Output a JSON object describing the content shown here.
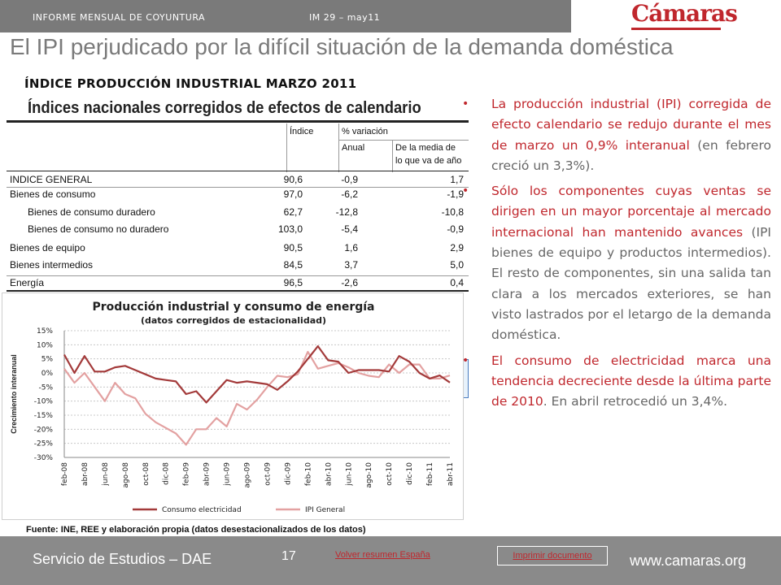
{
  "header": {
    "report": "INFORME MENSUAL DE COYUNTURA",
    "issue": "IM 29 – may11",
    "logo": "Cámaras",
    "title": "El IPI perjudicado por la difícil situación de la demanda doméstica"
  },
  "section_title": "ÍNDICE PRODUCCIÓN INDUSTRIAL MARZO 2011",
  "table": {
    "title": "Índices nacionales corregidos de efectos de calendario",
    "col_index": "Índice",
    "col_variation": "% variación",
    "col_annual": "Anual",
    "col_avg_line1": "De la media de",
    "col_avg_line2": "lo que va de año",
    "rows": [
      {
        "label": "INDICE GENERAL",
        "index": "90,6",
        "annual": "-0,9",
        "avg": "1,7"
      },
      {
        "label": "Bienes de consumo",
        "index": "97,0",
        "annual": "-6,2",
        "avg": "-1,9"
      },
      {
        "label": "Bienes de consumo duradero",
        "index": "62,7",
        "annual": "-12,8",
        "avg": "-10,8"
      },
      {
        "label": "Bienes de consumo no duradero",
        "index": "103,0",
        "annual": "-5,4",
        "avg": "-0,9"
      },
      {
        "label": "Bienes de equipo",
        "index": "90,5",
        "annual": "1,6",
        "avg": "2,9"
      },
      {
        "label": "Bienes intermedios",
        "index": "84,5",
        "annual": "3,7",
        "avg": "5,0"
      },
      {
        "label": "Energía",
        "index": "96,5",
        "annual": "-2,6",
        "avg": "0,4"
      }
    ]
  },
  "chart_data": {
    "type": "line",
    "title": "Producción industrial y consumo de energía",
    "subtitle": "(datos corregidos de estacionalidad)",
    "ylabel": "Crecimiento interanual",
    "ylim": [
      -30,
      15
    ],
    "yticks": [
      "15%",
      "10%",
      "5%",
      "0%",
      "-5%",
      "-10%",
      "-15%",
      "-20%",
      "-25%",
      "-30%"
    ],
    "ytick_values": [
      15,
      10,
      5,
      0,
      -5,
      -10,
      -15,
      -20,
      -25,
      -30
    ],
    "x_labels": [
      "feb-08",
      "abr-08",
      "jun-08",
      "ago-08",
      "oct-08",
      "dic-08",
      "feb-09",
      "abr-09",
      "jun-09",
      "ago-09",
      "oct-09",
      "dic-09",
      "feb-10",
      "abr-10",
      "jun-10",
      "ago-10",
      "oct-10",
      "dic-10",
      "feb-11",
      "abr-11"
    ],
    "x": [
      "feb-08",
      "mar-08",
      "abr-08",
      "may-08",
      "jun-08",
      "jul-08",
      "ago-08",
      "sep-08",
      "oct-08",
      "nov-08",
      "dic-08",
      "ene-09",
      "feb-09",
      "mar-09",
      "abr-09",
      "may-09",
      "jun-09",
      "jul-09",
      "ago-09",
      "sep-09",
      "oct-09",
      "nov-09",
      "dic-09",
      "ene-10",
      "feb-10",
      "mar-10",
      "abr-10",
      "may-10",
      "jun-10",
      "jul-10",
      "ago-10",
      "sep-10",
      "oct-10",
      "nov-10",
      "dic-10",
      "ene-11",
      "feb-11",
      "mar-11",
      "abr-11"
    ],
    "legend_position": "bottom",
    "grid": true,
    "colors": {
      "electricidad": "#a33a3a",
      "ipi": "#e3a1a1"
    },
    "series": [
      {
        "name": "Consumo electricidad",
        "values": [
          6.5,
          0,
          6,
          0.5,
          0.5,
          2,
          2.5,
          1,
          -0.5,
          -2,
          -2.5,
          -3,
          -7.5,
          -6.5,
          -10.5,
          -6.5,
          -2.5,
          -3.5,
          -3,
          -3.5,
          -4,
          -6,
          -3,
          0.5,
          5,
          9.5,
          4.5,
          4,
          0,
          1,
          1,
          1,
          0.5,
          6,
          4,
          0,
          -2,
          -0.9,
          -3.4
        ]
      },
      {
        "name": "IPI General",
        "values": [
          1.5,
          -3.5,
          0,
          -5,
          -10,
          -3.5,
          -7.5,
          -9,
          -14.5,
          -17.5,
          -19.5,
          -21.5,
          -25.5,
          -20,
          -20,
          -16,
          -19,
          -11,
          -13,
          -9.5,
          -5,
          -1,
          -1.5,
          -0.5,
          7.5,
          1.5,
          2.5,
          3.5,
          2,
          0,
          -1,
          -1.5,
          3,
          0,
          3,
          3,
          -2,
          -2,
          -0.9
        ]
      }
    ]
  },
  "source": "Fuente: INE, REE y elaboración propia (datos desestacionalizados de los datos)",
  "bullets": [
    {
      "dot": "•",
      "red": "La producción industrial (IPI) corregida de efecto calendario se redujo durante el mes de marzo un 0,9% interanual",
      "grey": " (en febrero creció un 3,3%)."
    },
    {
      "dot": "•",
      "red": "Sólo los componentes cuyas ventas se dirigen en un mayor porcentaje al mercado internacional han mantenido avances",
      "grey": " (IPI bienes de equipo y productos intermedios). El resto de componentes, sin una salida tan clara a los mercados exteriores, se han visto lastrados por el letargo de la demanda doméstica."
    },
    {
      "dot": "•",
      "red": "El consumo de electricidad marca una tendencia decreciente desde la última parte de 2010",
      "grey": ". En abril retrocedió un 3,4%."
    }
  ],
  "footer": {
    "service": "Servicio de Estudios – DAE",
    "page": "17",
    "link_summary": "Volver resumen España",
    "link_print": "Imprimir documento",
    "url": "www.camaras.org"
  }
}
